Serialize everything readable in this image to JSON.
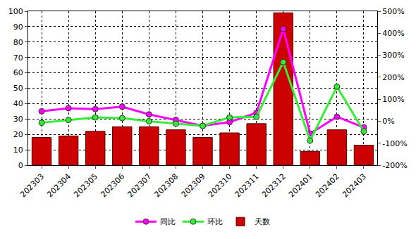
{
  "chart_data": {
    "type": "bar",
    "categories": [
      "202303",
      "202304",
      "202305",
      "202306",
      "202307",
      "202308",
      "202309",
      "202310",
      "202311",
      "202312",
      "202401",
      "202402",
      "202403"
    ],
    "series": [
      {
        "name": "同比",
        "type": "line",
        "axis": "y2",
        "color": "#ff00ff",
        "marker": "circle",
        "values": [
          45,
          59,
          55,
          66,
          31,
          6,
          -21,
          -4,
          38,
          420,
          -56,
          20,
          -28
        ]
      },
      {
        "name": "环比",
        "type": "line",
        "axis": "y2",
        "color": "#33ee33",
        "marker": "circle",
        "values": [
          -7,
          6,
          17,
          14,
          0,
          -11,
          -21,
          17,
          20,
          269,
          -88,
          157,
          -46
        ]
      },
      {
        "name": "天数",
        "type": "bar",
        "color": "#cc0000",
        "values": [
          18,
          19,
          22,
          25,
          25,
          23,
          18,
          21,
          27,
          99,
          9,
          23,
          13
        ]
      }
    ],
    "ylim": [
      0,
      100
    ],
    "yticks": [
      0,
      10,
      20,
      30,
      40,
      50,
      60,
      70,
      80,
      90,
      100
    ],
    "y2lim": [
      -200,
      500
    ],
    "y2ticks": [
      {
        "value": -200,
        "label": "-200%"
      },
      {
        "value": -100,
        "label": "-100%"
      },
      {
        "value": 0,
        "label": "0%"
      },
      {
        "value": 100,
        "label": "100%"
      },
      {
        "value": 200,
        "label": "200%"
      },
      {
        "value": 300,
        "label": "300%"
      },
      {
        "value": 400,
        "label": "400%"
      },
      {
        "value": 500,
        "label": "500%"
      }
    ],
    "grid": true,
    "legend": "bottom"
  }
}
